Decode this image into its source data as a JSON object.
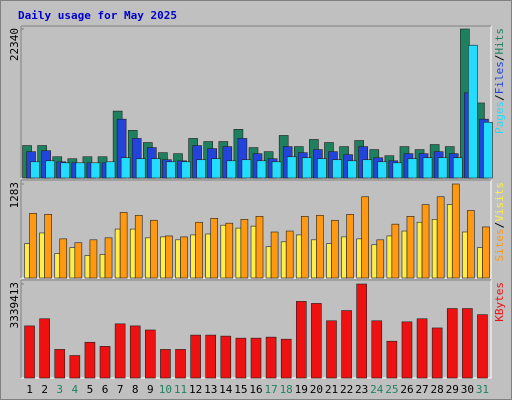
{
  "legend_separator": "/",
  "chart_data": [
    {
      "type": "bar",
      "title": "Daily usage for May 2025",
      "ylim": [
        0,
        22340
      ],
      "yticks": [
        22340
      ],
      "series": [
        {
          "name": "Pages",
          "color": "#22ddff",
          "values": [
            2430,
            2580,
            2280,
            2280,
            2280,
            2430,
            3040,
            2890,
            2890,
            2430,
            2430,
            2740,
            2890,
            2580,
            2740,
            2580,
            2430,
            3190,
            3040,
            2890,
            2740,
            2580,
            2740,
            2430,
            2280,
            2890,
            3040,
            3040,
            3040,
            19910,
            8360
          ]
        },
        {
          "name": "Files",
          "color": "#2244dd",
          "values": [
            3950,
            4100,
            2430,
            2280,
            2280,
            2280,
            8820,
            5930,
            4560,
            2740,
            2580,
            4860,
            4410,
            4710,
            5930,
            3650,
            2890,
            4710,
            3800,
            4260,
            3950,
            3500,
            4710,
            3040,
            2580,
            3650,
            3650,
            3950,
            3650,
            12770,
            8820
          ]
        },
        {
          "name": "Hits",
          "color": "#1f8060",
          "values": [
            4870,
            4870,
            3190,
            2890,
            3190,
            3190,
            10030,
            7140,
            5320,
            3800,
            3650,
            5930,
            5470,
            5470,
            7300,
            4560,
            3950,
            6380,
            4710,
            5780,
            5320,
            4710,
            5620,
            4260,
            3340,
            4710,
            4260,
            5020,
            4710,
            22340,
            11250
          ]
        }
      ]
    },
    {
      "type": "bar",
      "ylim": [
        0,
        1283
      ],
      "yticks": [
        1283
      ],
      "series": [
        {
          "name": "Sites",
          "color": "#ff9911",
          "values": [
            882,
            869,
            534,
            481,
            521,
            548,
            895,
            855,
            788,
            574,
            561,
            761,
            815,
            748,
            801,
            842,
            628,
            641,
            842,
            855,
            788,
            869,
            1109,
            521,
            735,
            842,
            1002,
            1109,
            1283,
            922,
            697
          ]
        },
        {
          "name": "Visits",
          "color": "#ffee44",
          "values": [
            468,
            615,
            334,
            414,
            307,
            321,
            668,
            668,
            548,
            561,
            521,
            588,
            601,
            721,
            681,
            708,
            427,
            494,
            588,
            521,
            468,
            561,
            534,
            454,
            574,
            641,
            761,
            801,
            1002,
            628,
            414
          ]
        }
      ]
    },
    {
      "type": "bar",
      "ylim": [
        0,
        3339413
      ],
      "yticks": [
        3339413
      ],
      "categories": [
        "1",
        "2",
        "3",
        "4",
        "5",
        "6",
        "7",
        "8",
        "9",
        "10",
        "11",
        "12",
        "13",
        "14",
        "15",
        "16",
        "17",
        "18",
        "19",
        "20",
        "21",
        "22",
        "23",
        "24",
        "25",
        "26",
        "27",
        "28",
        "29",
        "30",
        "31"
      ],
      "category_colors": [
        "#000000",
        "#000000",
        "#1f8060",
        "#1f8060",
        "#000000",
        "#000000",
        "#000000",
        "#000000",
        "#000000",
        "#1f8060",
        "#1f8060",
        "#000000",
        "#000000",
        "#000000",
        "#000000",
        "#000000",
        "#1f8060",
        "#1f8060",
        "#000000",
        "#000000",
        "#000000",
        "#000000",
        "#000000",
        "#1f8060",
        "#1f8060",
        "#000000",
        "#000000",
        "#000000",
        "#000000",
        "#000000",
        "#1f8060"
      ],
      "series": [
        {
          "name": "KBytes",
          "color": "#ee1111",
          "values": [
            1851000,
            2105000,
            1016000,
            799000,
            1270000,
            1125000,
            1924000,
            1851000,
            1706000,
            1016000,
            1016000,
            1524000,
            1524000,
            1488000,
            1416000,
            1416000,
            1452000,
            1379000,
            2722000,
            2650000,
            2033000,
            2396000,
            3339413,
            2033000,
            1307000,
            1996000,
            2105000,
            1778000,
            2468000,
            2468000,
            2251000
          ]
        }
      ]
    }
  ]
}
